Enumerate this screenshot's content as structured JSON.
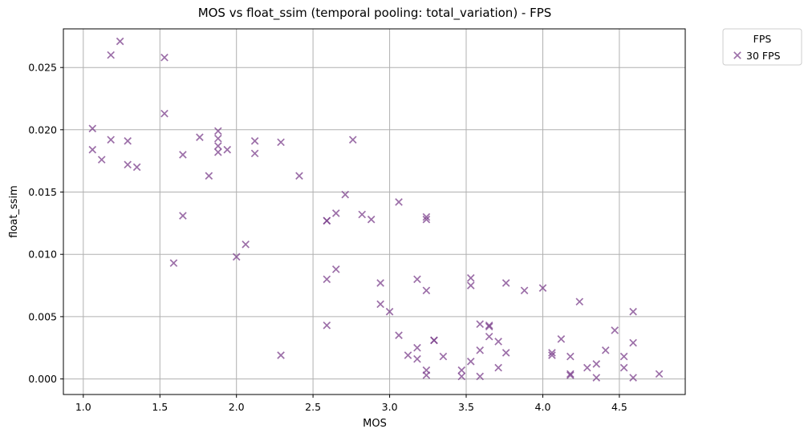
{
  "chart_data": {
    "type": "scatter",
    "title": "MOS vs float_ssim (temporal pooling: total_variation) - FPS",
    "xlabel": "MOS",
    "ylabel": "float_ssim",
    "xlim": [
      0.87,
      4.93
    ],
    "ylim": [
      -0.00125,
      0.0281
    ],
    "xticks": [
      1.0,
      1.5,
      2.0,
      2.5,
      3.0,
      3.5,
      4.0,
      4.5
    ],
    "xtick_labels": [
      "1.0",
      "1.5",
      "2.0",
      "2.5",
      "3.0",
      "3.5",
      "4.0",
      "4.5"
    ],
    "yticks": [
      0.0,
      0.005,
      0.01,
      0.015,
      0.02,
      0.025
    ],
    "ytick_labels": [
      "0.000",
      "0.005",
      "0.010",
      "0.015",
      "0.020",
      "0.025"
    ],
    "grid": true,
    "legend": {
      "title": "FPS",
      "placement": "outside-top-right"
    },
    "series": [
      {
        "name": "30 FPS",
        "color": "#7b3f8c",
        "marker": "x",
        "points": [
          [
            1.24,
            0.0271
          ],
          [
            1.18,
            0.026
          ],
          [
            1.53,
            0.0258
          ],
          [
            1.53,
            0.0213
          ],
          [
            1.06,
            0.0201
          ],
          [
            1.18,
            0.0192
          ],
          [
            1.29,
            0.0191
          ],
          [
            1.06,
            0.0184
          ],
          [
            1.12,
            0.0176
          ],
          [
            1.29,
            0.0172
          ],
          [
            1.35,
            0.017
          ],
          [
            1.65,
            0.018
          ],
          [
            1.76,
            0.0194
          ],
          [
            1.88,
            0.0199
          ],
          [
            1.88,
            0.0193
          ],
          [
            1.88,
            0.0187
          ],
          [
            1.88,
            0.0182
          ],
          [
            1.94,
            0.0184
          ],
          [
            2.12,
            0.0191
          ],
          [
            2.12,
            0.0181
          ],
          [
            2.29,
            0.019
          ],
          [
            1.82,
            0.0163
          ],
          [
            1.65,
            0.0131
          ],
          [
            1.59,
            0.0093
          ],
          [
            2.41,
            0.0163
          ],
          [
            2.76,
            0.0192
          ],
          [
            2.71,
            0.0148
          ],
          [
            3.06,
            0.0142
          ],
          [
            2.65,
            0.0133
          ],
          [
            2.82,
            0.0132
          ],
          [
            2.88,
            0.0128
          ],
          [
            2.59,
            0.0127
          ],
          [
            2.59,
            0.0127
          ],
          [
            3.24,
            0.013
          ],
          [
            3.24,
            0.0128
          ],
          [
            2.06,
            0.0108
          ],
          [
            2.0,
            0.0098
          ],
          [
            2.65,
            0.0088
          ],
          [
            2.59,
            0.008
          ],
          [
            2.94,
            0.0077
          ],
          [
            3.18,
            0.008
          ],
          [
            3.24,
            0.0071
          ],
          [
            2.94,
            0.006
          ],
          [
            3.0,
            0.0054
          ],
          [
            3.53,
            0.0081
          ],
          [
            3.53,
            0.0075
          ],
          [
            3.76,
            0.0077
          ],
          [
            3.88,
            0.0071
          ],
          [
            4.0,
            0.0073
          ],
          [
            4.24,
            0.0062
          ],
          [
            4.59,
            0.0054
          ],
          [
            4.47,
            0.0039
          ],
          [
            2.59,
            0.0043
          ],
          [
            3.06,
            0.0035
          ],
          [
            3.59,
            0.0044
          ],
          [
            3.65,
            0.0043
          ],
          [
            3.65,
            0.0042
          ],
          [
            3.65,
            0.0034
          ],
          [
            3.71,
            0.003
          ],
          [
            3.29,
            0.0031
          ],
          [
            3.29,
            0.0031
          ],
          [
            4.12,
            0.0032
          ],
          [
            4.59,
            0.0029
          ],
          [
            2.29,
            0.0019
          ],
          [
            3.12,
            0.0019
          ],
          [
            3.18,
            0.0025
          ],
          [
            3.18,
            0.0016
          ],
          [
            3.35,
            0.0018
          ],
          [
            3.53,
            0.0014
          ],
          [
            3.59,
            0.0023
          ],
          [
            3.76,
            0.0021
          ],
          [
            4.06,
            0.0021
          ],
          [
            4.06,
            0.0019
          ],
          [
            4.18,
            0.0018
          ],
          [
            4.41,
            0.0023
          ],
          [
            4.35,
            0.0012
          ],
          [
            4.53,
            0.0018
          ],
          [
            3.24,
            0.0007
          ],
          [
            3.24,
            0.0003
          ],
          [
            3.47,
            0.0007
          ],
          [
            3.47,
            0.0002
          ],
          [
            3.59,
            0.0002
          ],
          [
            3.71,
            0.0009
          ],
          [
            4.18,
            0.0004
          ],
          [
            4.18,
            0.0003
          ],
          [
            4.29,
            0.0009
          ],
          [
            4.35,
            0.0001
          ],
          [
            4.53,
            0.0009
          ],
          [
            4.59,
            0.0001
          ],
          [
            4.76,
            0.0004
          ]
        ]
      }
    ]
  }
}
